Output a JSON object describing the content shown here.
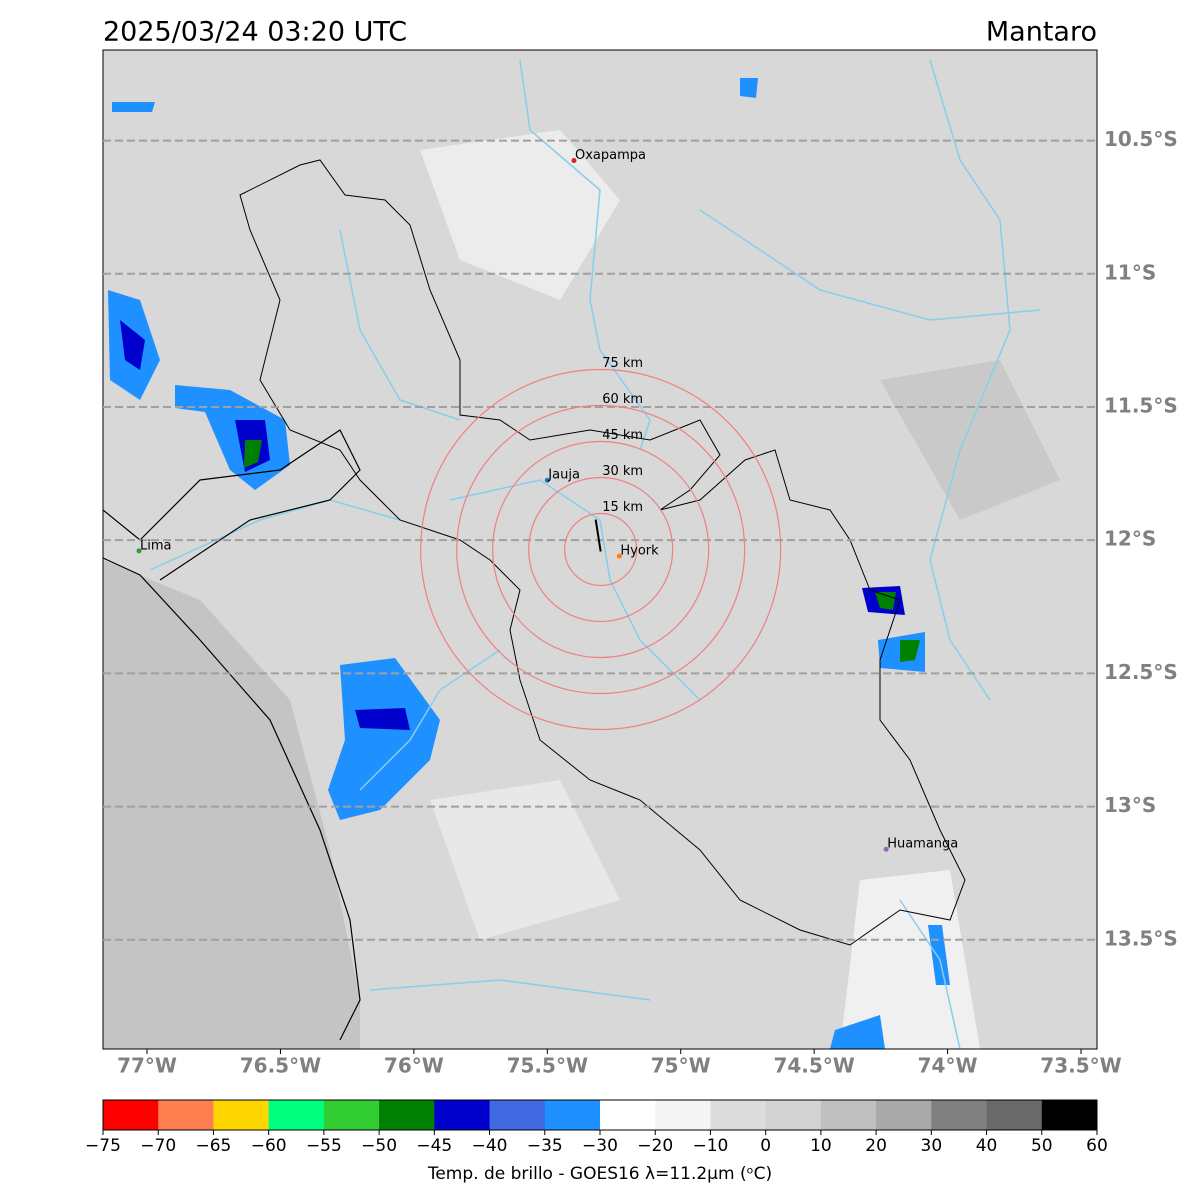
{
  "header": {
    "title": "2025/03/24 03:20 UTC",
    "region": "Mantaro"
  },
  "map": {
    "lon_range": [
      -77.165,
      -73.44
    ],
    "lat_range": [
      -10.16,
      -13.91
    ],
    "lon_ticks": [
      {
        "value": -77,
        "label": "77°W"
      },
      {
        "value": -76.5,
        "label": "76.5°W"
      },
      {
        "value": -76,
        "label": "76°W"
      },
      {
        "value": -75.5,
        "label": "75.5°W"
      },
      {
        "value": -75,
        "label": "75°W"
      },
      {
        "value": -74.5,
        "label": "74.5°W"
      },
      {
        "value": -74,
        "label": "74°W"
      },
      {
        "value": -73.5,
        "label": "73.5°W"
      }
    ],
    "lat_ticks": [
      {
        "value": -10.5,
        "label": "10.5°S"
      },
      {
        "value": -11,
        "label": "11°S"
      },
      {
        "value": -11.5,
        "label": "11.5°S"
      },
      {
        "value": -12,
        "label": "12°S"
      },
      {
        "value": -12.5,
        "label": "12.5°S"
      },
      {
        "value": -13,
        "label": "13°S"
      },
      {
        "value": -13.5,
        "label": "13.5°S"
      }
    ],
    "places": [
      {
        "name": "Oxapampa",
        "lon": -75.4,
        "lat": -10.575,
        "color": "#d62728"
      },
      {
        "name": "Jauja",
        "lon": -75.5,
        "lat": -11.775,
        "color": "#1f77b4"
      },
      {
        "name": "Hyork",
        "lon": -75.23,
        "lat": -12.06,
        "color": "#ff7f0e"
      },
      {
        "name": "Lima",
        "lon": -77.03,
        "lat": -12.04,
        "color": "#2ca02c"
      },
      {
        "name": "Huamanga",
        "lon": -74.23,
        "lat": -13.16,
        "color": "#9467bd"
      }
    ],
    "rings": {
      "center_lon": -75.3,
      "center_lat": -12.035,
      "color": "#f08080",
      "radii": [
        {
          "value": 15,
          "label": "15 km"
        },
        {
          "value": 30,
          "label": "30 km"
        },
        {
          "value": 45,
          "label": "45 km"
        },
        {
          "value": 60,
          "label": "60 km"
        },
        {
          "value": 75,
          "label": "75 km"
        }
      ]
    }
  },
  "colorbar": {
    "label": "Temp. de brillo - GOES16 λ=11.2μm (ᵒC)",
    "boundaries": [
      {
        "value": -75,
        "label": "−75"
      },
      {
        "value": -70,
        "label": "−70"
      },
      {
        "value": -65,
        "label": "−65"
      },
      {
        "value": -60,
        "label": "−60"
      },
      {
        "value": -55,
        "label": "−55"
      },
      {
        "value": -50,
        "label": "−50"
      },
      {
        "value": -45,
        "label": "−45"
      },
      {
        "value": -40,
        "label": "−40"
      },
      {
        "value": -35,
        "label": "−35"
      },
      {
        "value": -30,
        "label": "−30"
      },
      {
        "value": -20,
        "label": "−20"
      },
      {
        "value": -10,
        "label": "−10"
      },
      0,
      10,
      20,
      30,
      40,
      50,
      60
    ],
    "colors": [
      "#ff0000",
      "#ff7f50",
      "#ffd700",
      "#00ff7f",
      "#32cd32",
      "#008000",
      "#0000cd",
      "#4169e1",
      "#1e90ff",
      "#ffffff",
      "#f5f5f5",
      "#dcdcdc",
      "#d3d3d3",
      "#c0c0c0",
      "#a9a9a9",
      "#808080",
      "#696969",
      "#000000"
    ]
  }
}
